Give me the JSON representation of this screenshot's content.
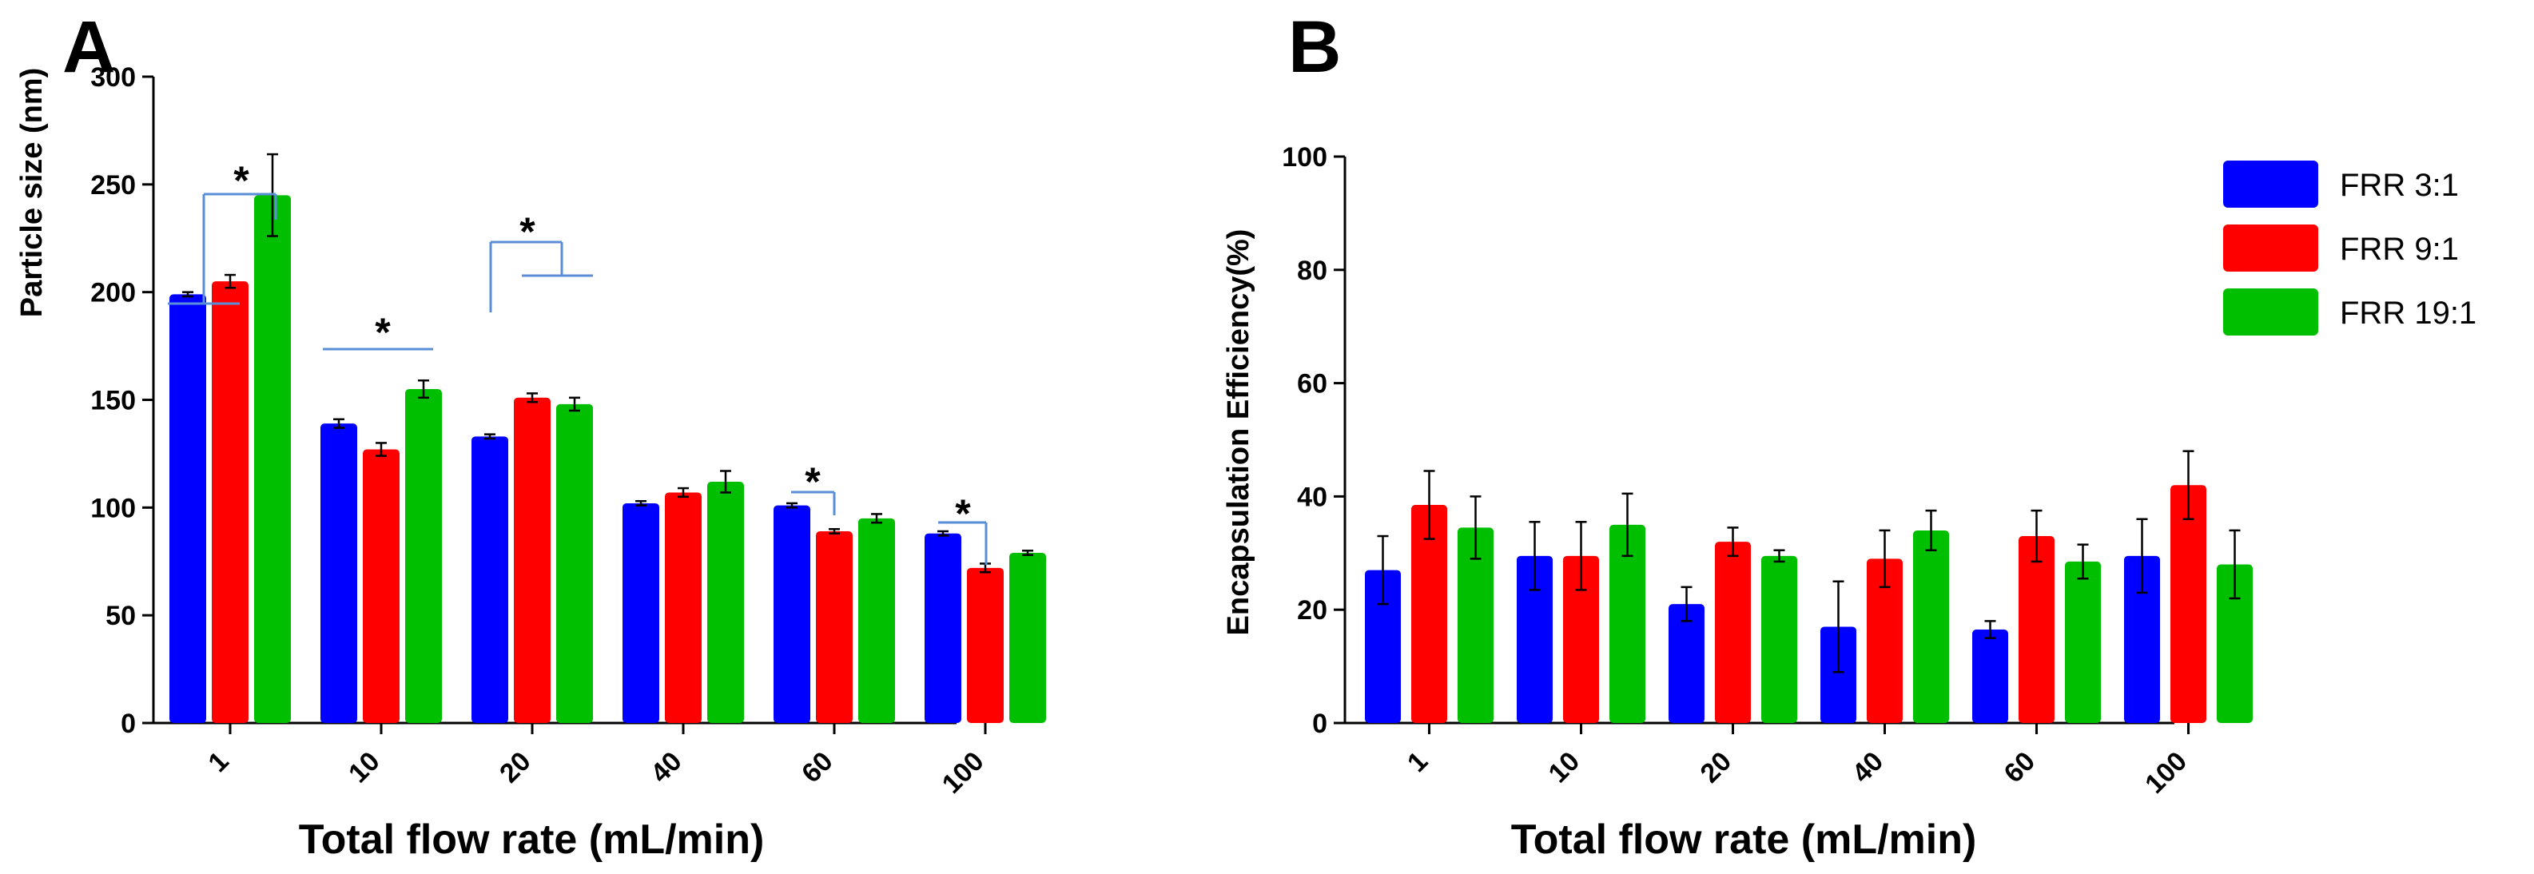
{
  "chart_data": [
    {
      "panel": "A",
      "type": "bar",
      "title": "",
      "xlabel": "Total flow rate (mL/min)",
      "ylabel": "Particle size (nm)",
      "ylim": [
        0,
        300
      ],
      "yticks": [
        0,
        50,
        100,
        150,
        200,
        250,
        300
      ],
      "categories": [
        "1",
        "10",
        "20",
        "40",
        "60",
        "100"
      ],
      "series": [
        {
          "name": "FRR 3:1",
          "color": "#0000ff",
          "values": [
            199,
            139,
            133,
            102,
            101,
            88
          ],
          "errors": [
            1,
            2,
            1,
            1,
            1,
            1
          ]
        },
        {
          "name": "FRR 9:1",
          "color": "#ff0000",
          "values": [
            205,
            127,
            151,
            107,
            89,
            72
          ],
          "errors": [
            3,
            3,
            2,
            2,
            1,
            2
          ]
        },
        {
          "name": "FRR 19:1",
          "color": "#00bf00",
          "values": [
            245,
            155,
            148,
            112,
            95,
            79
          ],
          "errors": [
            19,
            4,
            3,
            5,
            2,
            1
          ]
        }
      ],
      "significance": [
        {
          "category": "1",
          "label": "*"
        },
        {
          "category": "10",
          "label": "*"
        },
        {
          "category": "20",
          "label": "*"
        },
        {
          "category": "60",
          "label": "*"
        },
        {
          "category": "100",
          "label": "*"
        }
      ]
    },
    {
      "panel": "B",
      "type": "bar",
      "title": "",
      "xlabel": "Total flow rate (mL/min)",
      "ylabel": "Encapsulation Efficiency(%)",
      "ylim": [
        0,
        100
      ],
      "yticks": [
        0,
        20,
        40,
        60,
        80,
        100
      ],
      "categories": [
        "1",
        "10",
        "20",
        "40",
        "60",
        "100"
      ],
      "legend_position": "top-right",
      "series": [
        {
          "name": "FRR 3:1",
          "color": "#0000ff",
          "values": [
            27,
            29.5,
            21,
            17,
            16.5,
            29.5
          ],
          "errors": [
            6,
            6,
            3,
            8,
            1.5,
            6.5
          ]
        },
        {
          "name": "FRR 9:1",
          "color": "#ff0000",
          "values": [
            38.5,
            29.5,
            32,
            29,
            33,
            42
          ],
          "errors": [
            6,
            6,
            2.5,
            5,
            4.5,
            6
          ]
        },
        {
          "name": "FRR 19:1",
          "color": "#00bf00",
          "values": [
            34.5,
            35,
            29.5,
            34,
            28.5,
            28
          ],
          "errors": [
            5.5,
            5.5,
            1,
            3.5,
            3,
            6
          ]
        }
      ]
    }
  ]
}
